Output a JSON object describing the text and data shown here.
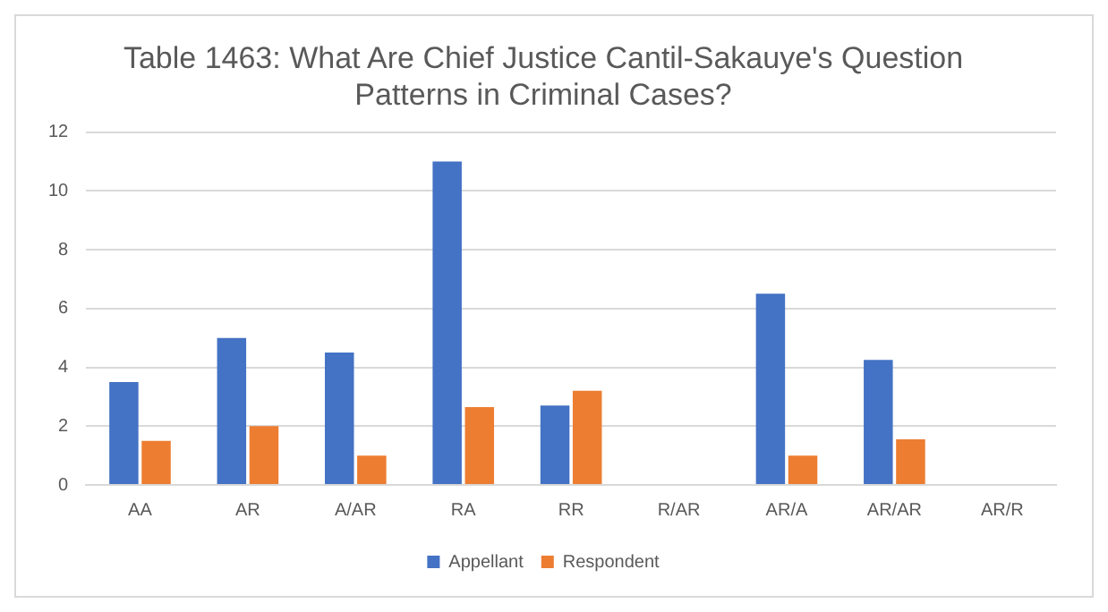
{
  "chart_data": {
    "type": "bar",
    "title": "Table 1463: What Are Chief Justice Cantil-Sakauye's Question Patterns in Criminal Cases?",
    "categories": [
      "AA",
      "AR",
      "A/AR",
      "RA",
      "RR",
      "R/AR",
      "AR/A",
      "AR/AR",
      "AR/R"
    ],
    "series": [
      {
        "name": "Appellant",
        "color": "#4472c4",
        "values": [
          3.5,
          5,
          4.5,
          11,
          2.7,
          0,
          6.5,
          4.25,
          0
        ]
      },
      {
        "name": "Respondent",
        "color": "#ed7d31",
        "values": [
          1.5,
          2,
          1,
          2.65,
          3.2,
          0,
          1,
          1.55,
          0
        ]
      }
    ],
    "ylim": [
      0,
      12
    ],
    "yticks": [
      0,
      2,
      4,
      6,
      8,
      10,
      12
    ],
    "grid": "y",
    "legend": "bottom"
  }
}
